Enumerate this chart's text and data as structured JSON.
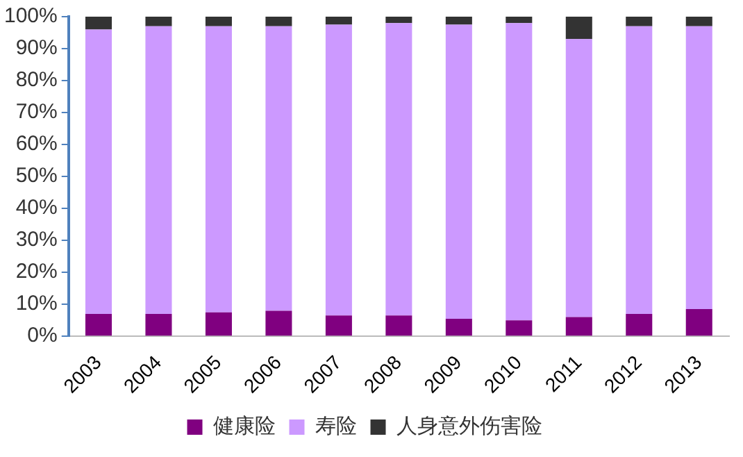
{
  "chart_data": {
    "type": "bar",
    "stacked": true,
    "categories": [
      "2003",
      "2004",
      "2005",
      "2006",
      "2007",
      "2008",
      "2009",
      "2010",
      "2011",
      "2012",
      "2013"
    ],
    "series": [
      {
        "name": "健康险",
        "color": "#800080",
        "values": [
          7,
          7,
          7.5,
          8,
          6.5,
          6.5,
          5.5,
          5,
          6,
          7,
          8.5
        ]
      },
      {
        "name": "寿险",
        "color": "#cc99ff",
        "values": [
          89,
          90,
          89.5,
          89,
          91,
          91.5,
          92,
          93,
          87,
          90,
          88.5
        ]
      },
      {
        "name": "人身意外伤害险",
        "color": "#333333",
        "values": [
          4,
          3,
          3,
          3,
          2.5,
          2,
          2.5,
          2,
          7,
          3,
          3
        ]
      }
    ],
    "ylim": [
      0,
      100
    ],
    "yticks": [
      {
        "value": 0,
        "label": "0%"
      },
      {
        "value": 10,
        "label": "10%"
      },
      {
        "value": 20,
        "label": "20%"
      },
      {
        "value": 30,
        "label": "30%"
      },
      {
        "value": 40,
        "label": "40%"
      },
      {
        "value": 50,
        "label": "50%"
      },
      {
        "value": 60,
        "label": "60%"
      },
      {
        "value": 70,
        "label": "70%"
      },
      {
        "value": 80,
        "label": "80%"
      },
      {
        "value": 90,
        "label": "90%"
      },
      {
        "value": 100,
        "label": "100%"
      }
    ],
    "grid": false,
    "legend": "bottom"
  }
}
